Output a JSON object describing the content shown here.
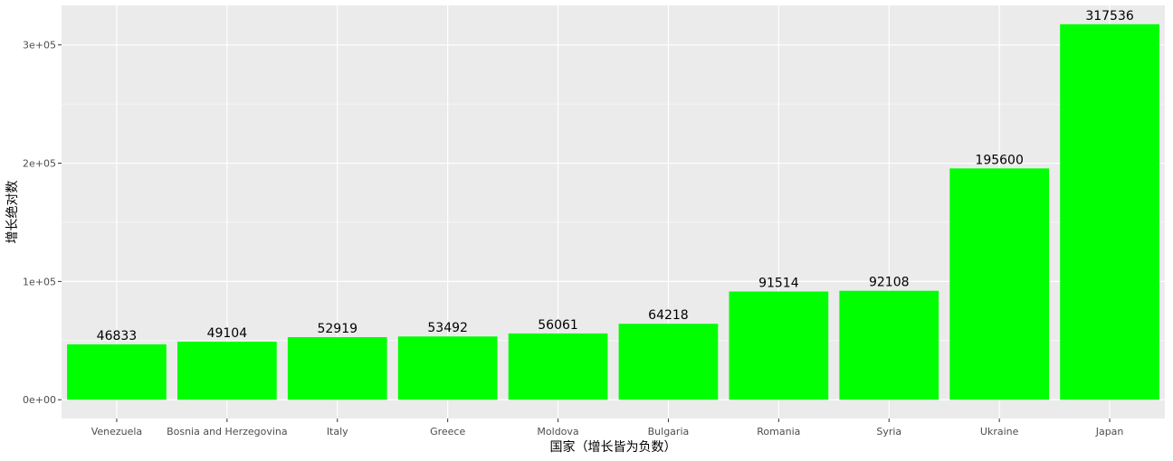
{
  "chart_data": {
    "type": "bar",
    "categories": [
      "Venezuela",
      "Bosnia and Herzegovina",
      "Italy",
      "Greece",
      "Moldova",
      "Bulgaria",
      "Romania",
      "Syria",
      "Ukraine",
      "Japan"
    ],
    "values": [
      46833,
      49104,
      52919,
      53492,
      56061,
      64218,
      91514,
      92108,
      195600,
      317536
    ],
    "data_labels": [
      "46833",
      "49104",
      "52919",
      "53492",
      "56061",
      "64218",
      "91514",
      "92108",
      "195600",
      "317536"
    ],
    "xlabel": "国家（增长皆为负数）",
    "ylabel": "增长绝对数",
    "yticks": [
      0,
      100000,
      200000,
      300000
    ],
    "ytick_labels": [
      "0e+00",
      "1e+05",
      "2e+05",
      "3e+05"
    ],
    "ylim": [
      -15878,
      333413
    ],
    "grid": true,
    "bar_color": "#00FF00",
    "panel_color": "#EBEBEB",
    "grid_color": "#FFFFFF"
  }
}
